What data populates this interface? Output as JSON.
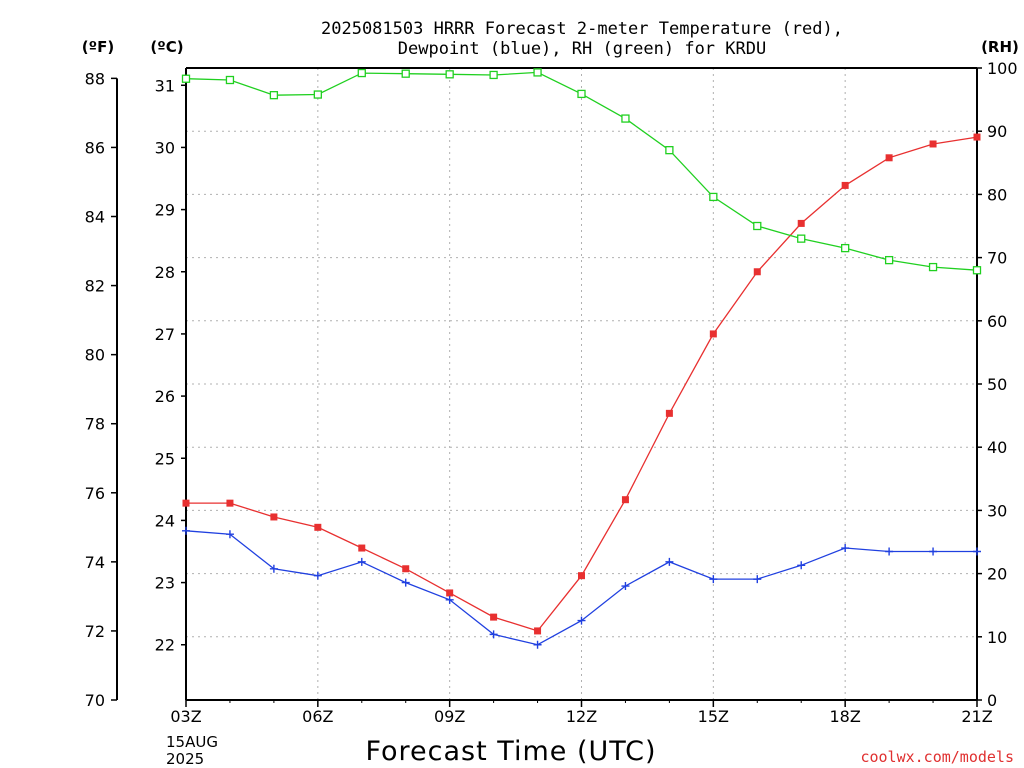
{
  "chart_data": {
    "type": "line",
    "title_line1": "2025081503 HRRR Forecast 2-meter Temperature (red),",
    "title_line2": "Dewpoint (blue), RH (green) for KRDU",
    "xlabel": "Forecast Time (UTC)",
    "watermark": "coolwx.com/models",
    "axis_units": {
      "fahrenheit": "(ºF)",
      "celsius": "(ºC)",
      "rh": "(RH)"
    },
    "x_ticks": [
      "03Z",
      "06Z",
      "09Z",
      "12Z",
      "15Z",
      "18Z",
      "21Z"
    ],
    "x_date_lines": [
      "15AUG",
      "2025"
    ],
    "x": [
      "03Z",
      "04Z",
      "05Z",
      "06Z",
      "07Z",
      "08Z",
      "09Z",
      "10Z",
      "11Z",
      "12Z",
      "13Z",
      "14Z",
      "15Z",
      "16Z",
      "17Z",
      "18Z",
      "19Z",
      "20Z",
      "21Z"
    ],
    "fahrenheit_ticks": [
      "70",
      "72",
      "74",
      "76",
      "78",
      "80",
      "82",
      "84",
      "86",
      "88"
    ],
    "celsius_ticks": [
      "22",
      "23",
      "24",
      "25",
      "26",
      "27",
      "28",
      "29",
      "30",
      "31"
    ],
    "rh_ticks": [
      "0",
      "10",
      "20",
      "30",
      "40",
      "50",
      "60",
      "70",
      "80",
      "90",
      "100"
    ],
    "ylim_fahrenheit": [
      70,
      88.3
    ],
    "ylim_rh": [
      0,
      100
    ],
    "grid": true,
    "series": [
      {
        "name": "Temperature",
        "color": "#e83030",
        "marker": "filled-square",
        "unit": "F",
        "values": [
          75.7,
          75.7,
          75.3,
          75.0,
          74.4,
          73.8,
          73.1,
          72.4,
          72.0,
          73.6,
          75.8,
          78.3,
          80.6,
          82.4,
          83.8,
          84.9,
          85.7,
          86.1,
          86.3
        ]
      },
      {
        "name": "Dewpoint",
        "color": "#2040e0",
        "marker": "plus",
        "unit": "F",
        "values": [
          74.9,
          74.8,
          73.8,
          73.6,
          74.0,
          73.4,
          72.9,
          71.9,
          71.6,
          72.3,
          73.3,
          74.0,
          73.5,
          73.5,
          73.9,
          74.4,
          74.3,
          74.3,
          74.3
        ]
      },
      {
        "name": "RH",
        "color": "#20d020",
        "marker": "open-square",
        "unit": "RH",
        "values": [
          98.3,
          98.1,
          95.7,
          95.8,
          99.2,
          99.1,
          99.0,
          98.9,
          99.3,
          95.9,
          92.0,
          87.0,
          79.6,
          75.0,
          73.0,
          71.5,
          69.6,
          68.5,
          68.0
        ]
      }
    ]
  }
}
